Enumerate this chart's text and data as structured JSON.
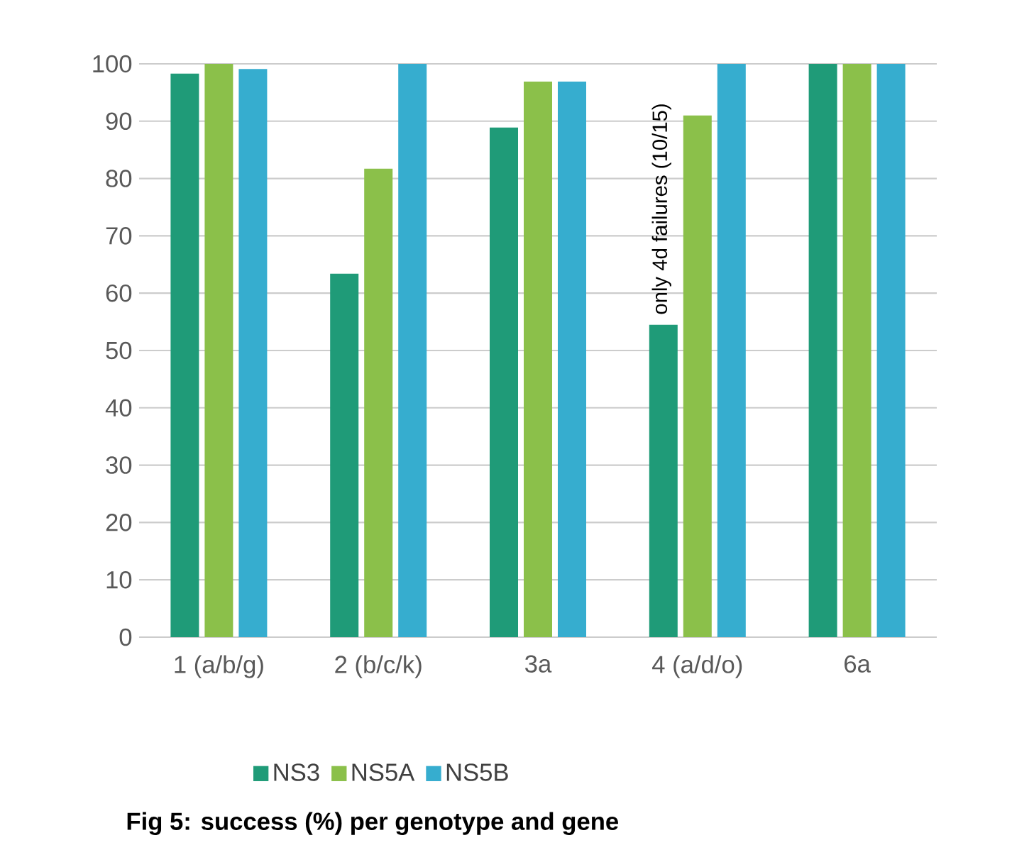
{
  "chart_data": {
    "type": "bar",
    "title": "Fig 5: success (%) per genotype and gene",
    "categories": [
      "1 (a/b/g)",
      "2 (b/c/k)",
      "3a",
      "4 (a/d/o)",
      "6a"
    ],
    "series": [
      {
        "name": "NS3",
        "color": "#1f9b78",
        "values": [
          98.3,
          63.4,
          88.9,
          54.5,
          100
        ]
      },
      {
        "name": "NS5A",
        "color": "#8bc04a",
        "values": [
          100,
          81.7,
          96.9,
          91,
          100
        ]
      },
      {
        "name": "NS5B",
        "color": "#36adcf",
        "values": [
          99.1,
          100,
          96.9,
          100,
          100
        ]
      }
    ],
    "annotations": [
      "only 4d failures (10/15)"
    ],
    "ylim": [
      0,
      100
    ],
    "yticks": [
      0,
      10,
      20,
      30,
      40,
      50,
      60,
      70,
      80,
      90,
      100
    ],
    "grid": "y",
    "legend": "bottom"
  }
}
